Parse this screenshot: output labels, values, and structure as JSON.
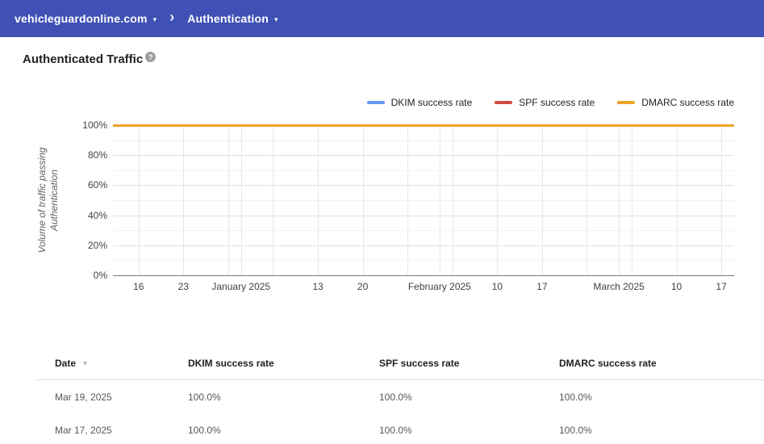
{
  "icons": {
    "caret_down": "▾",
    "chevron_right": "›",
    "help": "?",
    "sort_desc": "▼"
  },
  "header": {
    "bg_color": "#3f51b5",
    "domain": "vehicleguardonline.com",
    "section": "Authentication"
  },
  "page": {
    "title": "Authenticated Traffic"
  },
  "chart_data": {
    "type": "line",
    "title": "Authenticated Traffic",
    "ylabel": "Volume of traffic passing Authentication",
    "xlabel": "",
    "ylim": [
      0,
      100
    ],
    "grid": true,
    "legend_position": "top-right",
    "y_ticks": [
      {
        "value": 100,
        "label": "100%"
      },
      {
        "value": 80,
        "label": "80%"
      },
      {
        "value": 60,
        "label": "60%"
      },
      {
        "value": 40,
        "label": "40%"
      },
      {
        "value": 20,
        "label": "20%"
      },
      {
        "value": 0,
        "label": "0%"
      }
    ],
    "y_minor_ticks": [
      90,
      70,
      50,
      30,
      10
    ],
    "x_domain_days": [
      0,
      97
    ],
    "x_ticks": [
      {
        "day": 4,
        "label": "16"
      },
      {
        "day": 11,
        "label": "23"
      },
      {
        "day": 18,
        "label": ""
      },
      {
        "day": 20,
        "label": "January 2025"
      },
      {
        "day": 25,
        "label": ""
      },
      {
        "day": 32,
        "label": "13"
      },
      {
        "day": 39,
        "label": "20"
      },
      {
        "day": 46,
        "label": ""
      },
      {
        "day": 51,
        "label": "February 2025"
      },
      {
        "day": 53,
        "label": ""
      },
      {
        "day": 60,
        "label": "10"
      },
      {
        "day": 67,
        "label": "17"
      },
      {
        "day": 74,
        "label": ""
      },
      {
        "day": 79,
        "label": "March 2025"
      },
      {
        "day": 81,
        "label": ""
      },
      {
        "day": 88,
        "label": "10"
      },
      {
        "day": 95,
        "label": "17"
      }
    ],
    "series": [
      {
        "name": "DKIM success rate",
        "color": "#5e97f6",
        "value_percent": 100
      },
      {
        "name": "SPF success rate",
        "color": "#d24b3f",
        "value_percent": 100
      },
      {
        "name": "DMARC success rate",
        "color": "#eda32b",
        "value_percent": 100
      }
    ]
  },
  "table": {
    "columns": [
      {
        "label": "Date",
        "sortable": true
      },
      {
        "label": "DKIM success rate"
      },
      {
        "label": "SPF success rate"
      },
      {
        "label": "DMARC success rate"
      }
    ],
    "rows": [
      {
        "date": "Mar 19, 2025",
        "dkim": "100.0%",
        "spf": "100.0%",
        "dmarc": "100.0%"
      },
      {
        "date": "Mar 17, 2025",
        "dkim": "100.0%",
        "spf": "100.0%",
        "dmarc": "100.0%"
      }
    ]
  }
}
